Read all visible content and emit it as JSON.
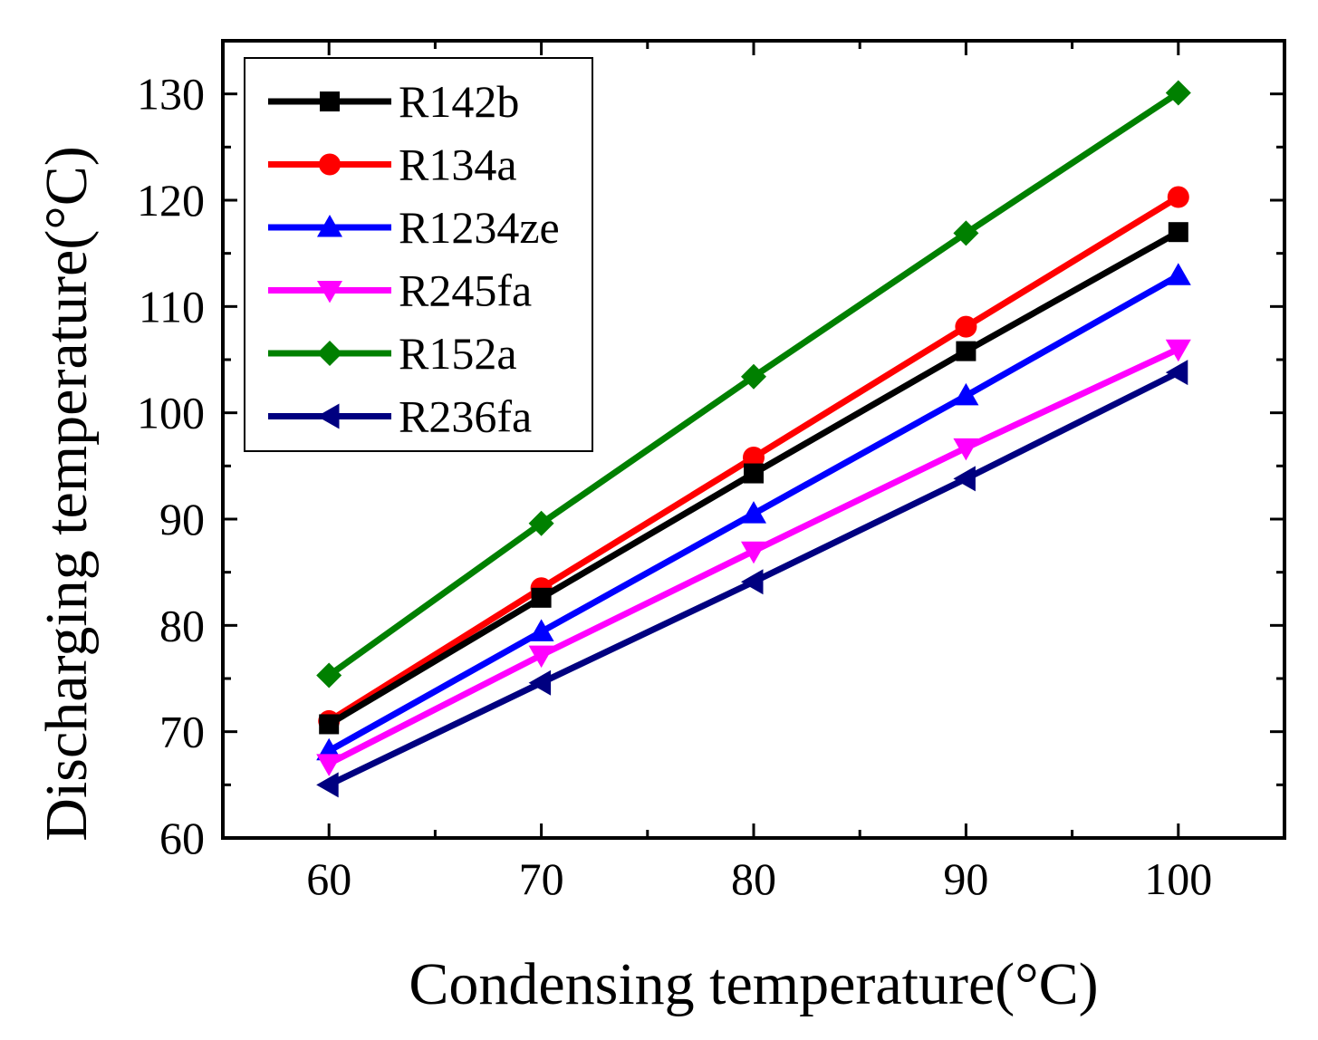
{
  "chart_data": {
    "type": "line",
    "title": "",
    "xlabel": "Condensing temperature(°C)",
    "ylabel": "Discharging temperature(°C)",
    "xlim": [
      55,
      105
    ],
    "ylim": [
      60,
      135
    ],
    "x": [
      60,
      70,
      80,
      90,
      100
    ],
    "xticks": [
      60,
      70,
      80,
      90,
      100
    ],
    "xtick_labels": [
      "60",
      "70",
      "80",
      "90",
      "100"
    ],
    "yticks": [
      60,
      70,
      80,
      90,
      100,
      110,
      120,
      130
    ],
    "ytick_labels": [
      "60",
      "70",
      "80",
      "90",
      "100",
      "110",
      "120",
      "130"
    ],
    "x_minor_step": 5,
    "y_minor_step": 5,
    "grid": false,
    "legend_position": "top-left",
    "series": [
      {
        "name": "R142b",
        "values": [
          70.7,
          82.6,
          94.3,
          105.8,
          117.0
        ],
        "color": "#000000",
        "marker": "square"
      },
      {
        "name": "R134a",
        "values": [
          71.0,
          83.5,
          95.8,
          108.1,
          120.3
        ],
        "color": "#ff0000",
        "marker": "circle"
      },
      {
        "name": "R1234ze",
        "values": [
          68.2,
          79.4,
          90.5,
          101.6,
          112.9
        ],
        "color": "#0000ff",
        "marker": "triangle-up"
      },
      {
        "name": "R245fa",
        "values": [
          67.0,
          77.2,
          87.0,
          96.7,
          106.0
        ],
        "color": "#ff00ff",
        "marker": "triangle-down"
      },
      {
        "name": "R152a",
        "values": [
          75.3,
          89.6,
          103.4,
          116.9,
          130.1
        ],
        "color": "#008000",
        "marker": "diamond"
      },
      {
        "name": "R236fa",
        "values": [
          65.0,
          74.6,
          84.1,
          93.8,
          103.8
        ],
        "color": "#000080",
        "marker": "triangle-left"
      }
    ]
  }
}
